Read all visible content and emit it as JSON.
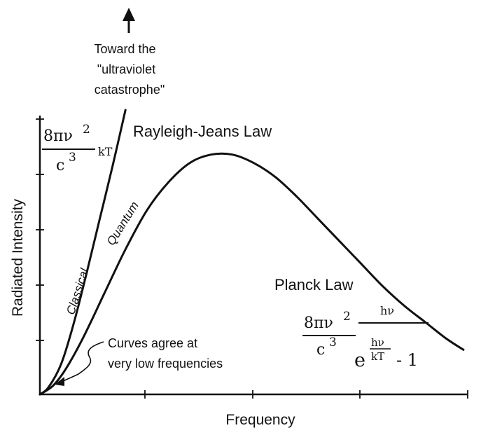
{
  "chart_data": {
    "type": "line",
    "title": "",
    "xlabel": "Frequency",
    "ylabel": "Radiated Intensity",
    "xlim": [
      0,
      1
    ],
    "ylim": [
      0,
      1
    ],
    "grid": false,
    "series": [
      {
        "name": "Classical",
        "x": [
          0,
          0.02,
          0.05,
          0.08,
          0.11,
          0.14,
          0.17,
          0.2
        ],
        "y": [
          0,
          0.025,
          0.11,
          0.26,
          0.44,
          0.63,
          0.82,
          1.02
        ]
      },
      {
        "name": "Quantum",
        "x": [
          0,
          0.03,
          0.06,
          0.1,
          0.15,
          0.2,
          0.25,
          0.3,
          0.35,
          0.4,
          0.45,
          0.5,
          0.55,
          0.6,
          0.65,
          0.7,
          0.75,
          0.8,
          0.85,
          0.9,
          0.95,
          0.99
        ],
        "y": [
          0,
          0.03,
          0.09,
          0.2,
          0.36,
          0.52,
          0.66,
          0.76,
          0.83,
          0.86,
          0.86,
          0.83,
          0.78,
          0.71,
          0.63,
          0.55,
          0.47,
          0.39,
          0.32,
          0.26,
          0.2,
          0.16
        ]
      }
    ],
    "annotations": {
      "arrow_label": "Toward the \"ultraviolet catastrophe\"",
      "rayleigh_jeans_title": "Rayleigh-Jeans Law",
      "planck_title": "Planck Law",
      "agree_label_line1": "Curves agree at",
      "agree_label_line2": "very low frequencies",
      "rj_formula": {
        "num_prefix": "8πν",
        "num_exp": "2",
        "den_base": "c",
        "den_exp": "3",
        "suffix": "kT"
      },
      "planck_formula": {
        "num_prefix": "8πν",
        "num_exp": "2",
        "den_base": "c",
        "den_exp": "3",
        "frac_num": "hν",
        "exp_base": "e",
        "exp_num": "hν",
        "exp_den": "kT",
        "minus_one": "- 1"
      }
    }
  }
}
